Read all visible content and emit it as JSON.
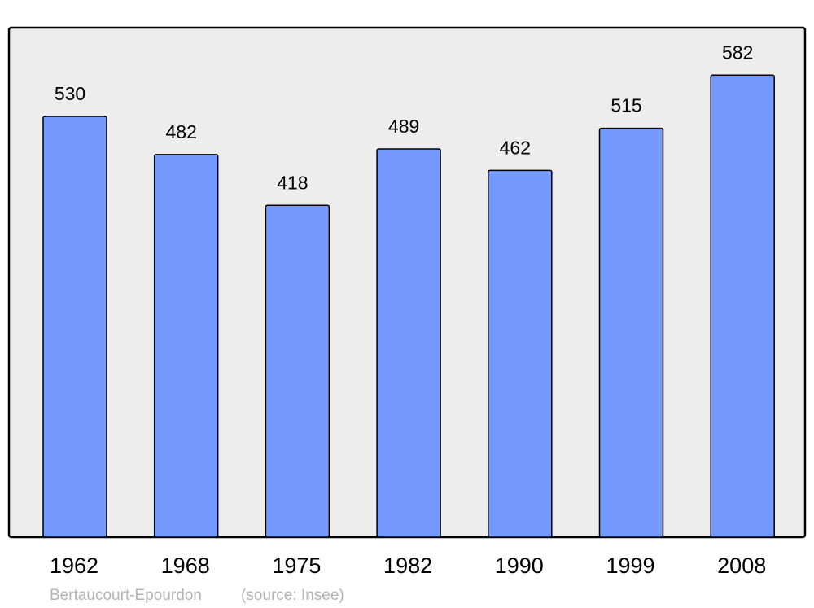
{
  "chart_data": {
    "type": "bar",
    "categories": [
      "1962",
      "1968",
      "1975",
      "1982",
      "1990",
      "1999",
      "2008"
    ],
    "values": [
      530,
      482,
      418,
      489,
      462,
      515,
      582
    ],
    "data_labels": [
      "530",
      "482",
      "418",
      "489",
      "462",
      "515",
      "582"
    ],
    "ylim": [
      0,
      600
    ],
    "grid": false,
    "bar_color": "#7399ff",
    "plot_background": "#ededed",
    "footer": {
      "place": "Bertaucourt-Epourdon",
      "source": "(source: Insee)"
    }
  }
}
